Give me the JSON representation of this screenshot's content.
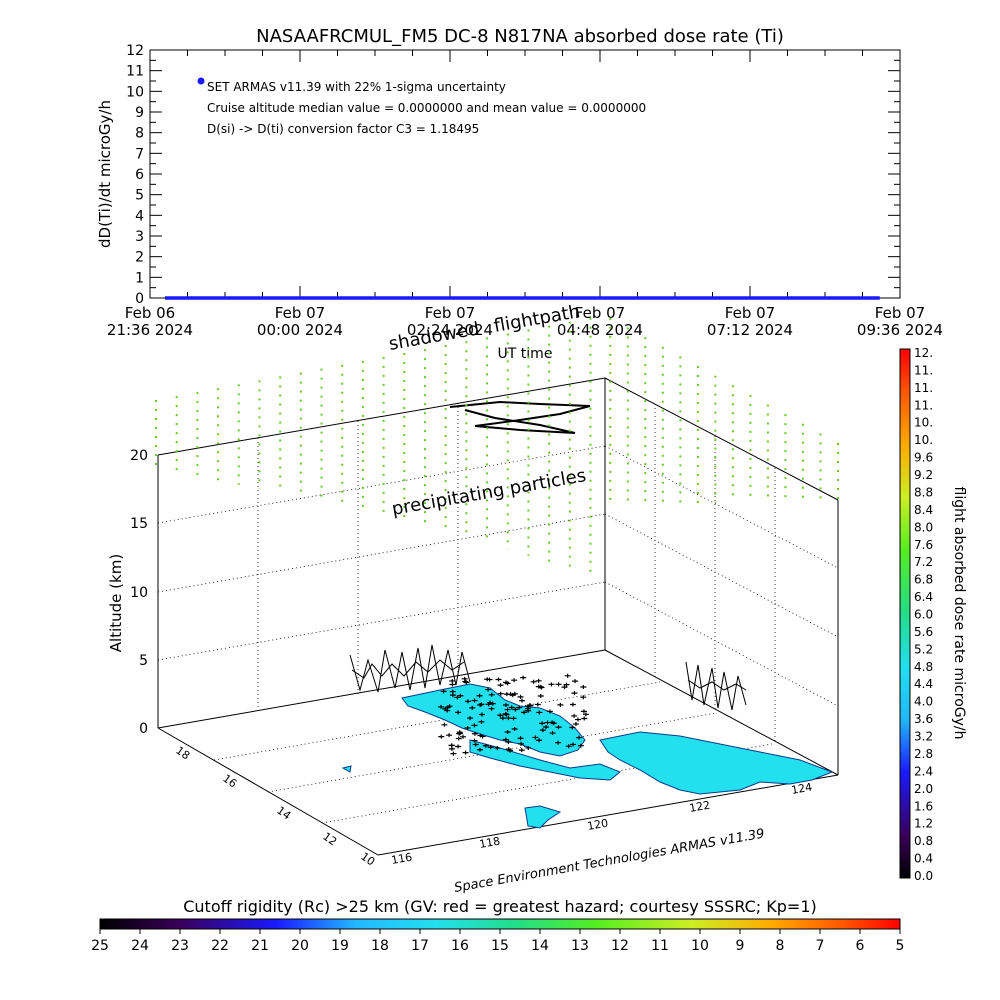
{
  "chart_data": [
    {
      "type": "line",
      "title": "NASAAFRCMUL_FM5 DC-8   N817NA absorbed dose rate (Ti)",
      "ylabel": "dD(Ti)/dt microGy/h",
      "xlabel": "UT time",
      "ylim": [
        0,
        12
      ],
      "yticks": [
        "0",
        "1",
        "2",
        "3",
        "4",
        "5",
        "6",
        "7",
        "8",
        "9",
        "10",
        "11",
        "12"
      ],
      "x_ticks": [
        {
          "line1": "Feb 06",
          "line2": "21:36 2024"
        },
        {
          "line1": "Feb 07",
          "line2": "00:00 2024"
        },
        {
          "line1": "Feb 07",
          "line2": "02:24 2024"
        },
        {
          "line1": "Feb 07",
          "line2": "04:48 2024"
        },
        {
          "line1": "Feb 07",
          "line2": "07:12 2024"
        },
        {
          "line1": "Feb 07",
          "line2": "09:36 2024"
        }
      ],
      "series": [
        {
          "color": "#1a1aff",
          "x_start": "Feb 06 21:36 2024",
          "x_end": "Feb 07 09:18 2024",
          "values": [
            0,
            0
          ]
        }
      ],
      "annotations": [
        "SET ARMAS v11.39 with 22% 1-sigma uncertainty",
        "Cruise altitude median value = 0.0000000 and mean value = 0.0000000",
        "D(si) -> D(ti) conversion factor C3 = 1.18495"
      ]
    },
    {
      "type": "scatter",
      "title": "",
      "zlabel": "Altitude (km)",
      "zticks": [
        "0",
        "5",
        "10",
        "15",
        "20"
      ],
      "lat_ticks": [
        "18",
        "16",
        "14",
        "12",
        "10"
      ],
      "lon_ticks": [
        "116",
        "118",
        "120",
        "122",
        "124"
      ],
      "labels": [
        "shadowed",
        "flightpath",
        "precipitating particles"
      ],
      "credit": "Space Environment Technologies ARMAS v11.39"
    }
  ],
  "colorbar_right": {
    "label": "flight absorbed dose rate microGy/h",
    "ticks": [
      "0.0",
      "0.4",
      "0.8",
      "1.2",
      "1.6",
      "2.0",
      "2.4",
      "2.8",
      "3.2",
      "3.6",
      "4.0",
      "4.4",
      "4.8",
      "5.2",
      "5.6",
      "6.0",
      "6.4",
      "6.8",
      "7.2",
      "7.6",
      "8.0",
      "8.4",
      "8.8",
      "9.2",
      "9.6",
      "10.",
      "10.",
      "11.",
      "11.",
      "11.",
      "12."
    ]
  },
  "colorbar_bottom": {
    "title": "Cutoff rigidity (Rc) >25 km (GV: red = greatest hazard; courtesy SSSRC; Kp=1)",
    "ticks": [
      "25",
      "24",
      "23",
      "22",
      "21",
      "20",
      "19",
      "18",
      "17",
      "16",
      "15",
      "14",
      "13",
      "12",
      "11",
      "10",
      "9",
      "8",
      "7",
      "6",
      "5"
    ]
  },
  "colors": {
    "trace": "#1a1aff",
    "land": "#22e0ee",
    "particles": "#66cc22",
    "grid": "#000000"
  }
}
